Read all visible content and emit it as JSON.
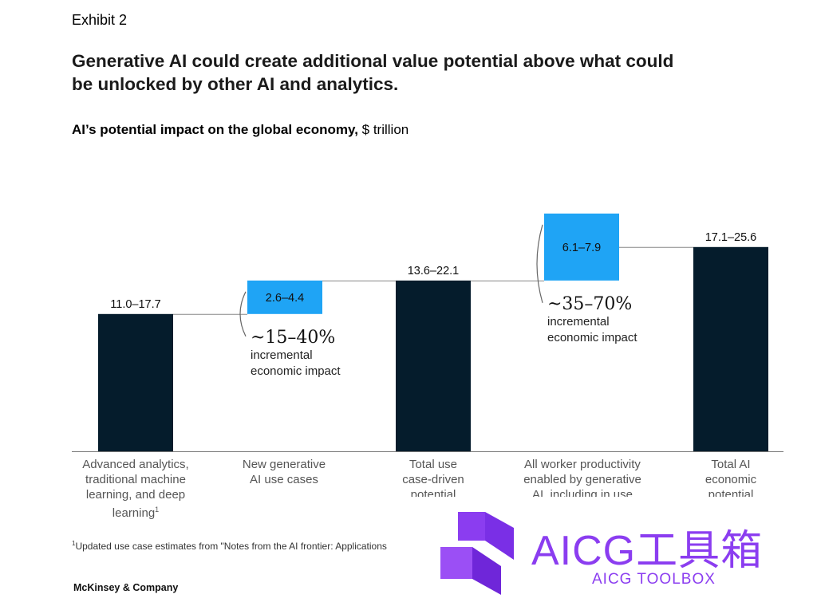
{
  "exhibit": "Exhibit 2",
  "headline": "Generative AI could create additional value potential above what could be unlocked by other AI and analytics.",
  "subtitle_bold": "AI’s potential impact on the global economy,",
  "subtitle_unit": " $ trillion",
  "chart_data": {
    "type": "bar",
    "subtype": "waterfall",
    "categories": [
      "Advanced analytics, traditional machine learning, and deep learning",
      "New generative AI use cases",
      "Total use case-driven potential",
      "All worker productivity enabled by generative AI, including in use",
      "Total AI economic potential"
    ],
    "category_lines": [
      [
        "Advanced analytics,",
        "traditional machine",
        "learning, and deep",
        "learning"
      ],
      [
        "New generative",
        "AI use cases"
      ],
      [
        "Total use",
        "case-driven",
        "potential"
      ],
      [
        "All worker productivity",
        "enabled by generative",
        "AI, including in use"
      ],
      [
        "Total AI",
        "economic",
        "potential"
      ]
    ],
    "bars": [
      {
        "kind": "total",
        "low": 11.0,
        "high": 17.7,
        "value_label": "11.0–17.7",
        "color": "#051c2c"
      },
      {
        "kind": "increment",
        "low": 2.6,
        "high": 4.4,
        "value_label": "2.6–4.4",
        "color": "#1fa4f5"
      },
      {
        "kind": "total",
        "low": 13.6,
        "high": 22.1,
        "value_label": "13.6–22.1",
        "color": "#051c2c"
      },
      {
        "kind": "increment",
        "low": 6.1,
        "high": 7.9,
        "value_label": "6.1–7.9",
        "color": "#1fa4f5"
      },
      {
        "kind": "total",
        "low": 17.1,
        "high": 25.6,
        "value_label": "17.1–25.6",
        "color": "#051c2c"
      }
    ],
    "annotations": [
      {
        "pct": "~15–40%",
        "line1": "incremental",
        "line2": "economic impact"
      },
      {
        "pct": "~35–70%",
        "line1": "incremental",
        "line2": "economic impact"
      }
    ],
    "legend": "none",
    "grid": false
  },
  "footnote_mark": "1",
  "footnote_text": "Updated use case estimates from \"Notes from the AI frontier: Applications",
  "brand": "McKinsey & Company",
  "watermark_text": "AICG工具箱",
  "watermark_sub": "AICG TOOLBOX"
}
